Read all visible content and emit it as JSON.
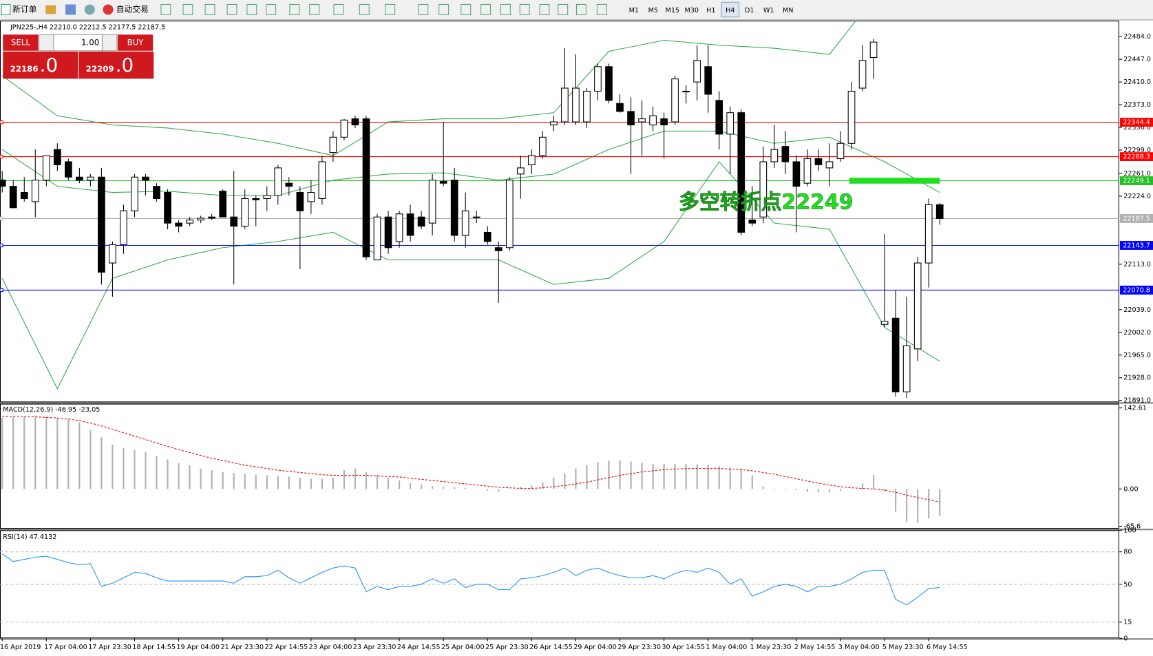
{
  "toolbar": {
    "new_order": "新订单",
    "auto_trading": "自动交易",
    "timeframes": [
      "M1",
      "M5",
      "M15",
      "M30",
      "H1",
      "H4",
      "D1",
      "W1",
      "MN"
    ]
  },
  "trade_panel": {
    "sell": "SELL",
    "volume": "1.00",
    "buy": "BUY",
    "bid": "22186",
    "bid_frac": ".0",
    "ask": "22209",
    "ask_frac": ".0"
  },
  "chart_data": [
    {
      "type": "candlestick",
      "title": "JPN225-,H4 22210.0 22212.5 22177.5 22187.5",
      "open": [
        22250,
        22240,
        22230,
        22215,
        22250,
        22300,
        22280,
        22255,
        22250,
        22255,
        22115,
        22145,
        22200,
        22255,
        22240,
        22230,
        22180,
        22180,
        22185,
        22190,
        22232,
        22190,
        22175,
        22220,
        22220,
        22225,
        22245,
        22230,
        22215,
        22220,
        22295,
        22320,
        22350,
        22350,
        22120,
        22190,
        22150,
        22195,
        22190,
        22180,
        22248,
        22250,
        22160,
        22190,
        22165,
        22140,
        22140,
        22260,
        22275,
        22290,
        22340,
        22345,
        22345,
        22345,
        22395,
        22435,
        22375,
        22362,
        22345,
        22340,
        22350,
        22345,
        22395,
        22410,
        22435,
        22380,
        22325,
        22360,
        22185,
        22190,
        22280,
        22305,
        22280,
        22245,
        22285,
        22270,
        22285,
        22310,
        22400,
        22450,
        22015,
        22025,
        21905,
        21975,
        22115,
        22210
      ],
      "high": [
        22265,
        22250,
        22255,
        22300,
        22290,
        22310,
        22285,
        22270,
        22260,
        22270,
        22150,
        22210,
        22260,
        22260,
        22245,
        22235,
        22185,
        22190,
        22192,
        22195,
        22235,
        22265,
        22235,
        22225,
        22240,
        22275,
        22255,
        22240,
        22250,
        22290,
        22330,
        22350,
        22355,
        22355,
        22195,
        22200,
        22200,
        22210,
        22200,
        22260,
        22345,
        22270,
        22230,
        22200,
        22175,
        22150,
        22255,
        22290,
        22300,
        22330,
        22355,
        22465,
        22455,
        22400,
        22440,
        22440,
        22390,
        22385,
        22380,
        22370,
        22360,
        22420,
        22405,
        22470,
        22470,
        22395,
        22370,
        22365,
        22240,
        22305,
        22340,
        22330,
        22290,
        22300,
        22300,
        22310,
        22330,
        22410,
        22470,
        22480,
        22162,
        22070,
        22060,
        22125,
        22220,
        22212.5
      ],
      "low": [
        22230,
        22210,
        22215,
        22190,
        22240,
        22265,
        22250,
        22245,
        22240,
        22080,
        22060,
        22130,
        22190,
        22225,
        22215,
        22170,
        22165,
        22175,
        22180,
        22185,
        22190,
        22080,
        22170,
        22175,
        22200,
        22210,
        22225,
        22105,
        22195,
        22210,
        22280,
        22315,
        22335,
        22120,
        22120,
        22130,
        22140,
        22150,
        22170,
        22160,
        22240,
        22150,
        22140,
        22180,
        22145,
        22050,
        22135,
        22220,
        22260,
        22285,
        22330,
        22340,
        22340,
        22335,
        22380,
        22375,
        22360,
        22260,
        22290,
        22330,
        22285,
        22340,
        22375,
        22380,
        22360,
        22300,
        22260,
        22160,
        22175,
        22180,
        22270,
        22260,
        22165,
        22240,
        22265,
        22240,
        22280,
        22300,
        22395,
        22415,
        22010,
        21897,
        21895,
        21955,
        22075,
        22177.5
      ],
      "close": [
        22240,
        22205,
        22220,
        22250,
        22290,
        22275,
        22255,
        22250,
        22255,
        22100,
        22145,
        22200,
        22255,
        22250,
        22220,
        22180,
        22175,
        22185,
        22188,
        22188,
        22190,
        22175,
        22220,
        22218,
        22225,
        22270,
        22240,
        22200,
        22230,
        22280,
        22320,
        22348,
        22340,
        22125,
        22190,
        22140,
        22195,
        22160,
        22175,
        22250,
        22245,
        22160,
        22200,
        22190,
        22150,
        22135,
        22250,
        22270,
        22290,
        22320,
        22345,
        22400,
        22400,
        22395,
        22435,
        22380,
        22362,
        22340,
        22350,
        22355,
        22340,
        22415,
        22395,
        22445,
        22390,
        22325,
        22360,
        22165,
        22180,
        22280,
        22300,
        22280,
        22240,
        22285,
        22275,
        22280,
        22310,
        22395,
        22445,
        22475,
        22020,
        21905,
        21980,
        22115,
        22210,
        22187.5
      ],
      "bands": {
        "x": [
          0,
          5,
          10,
          15,
          20,
          25,
          30,
          35,
          40,
          45,
          50,
          55,
          60,
          65,
          70,
          75,
          80,
          85
        ],
        "upper": [
          22420,
          22355,
          22340,
          22335,
          22325,
          22310,
          22290,
          22345,
          22350,
          22350,
          22360,
          22460,
          22478,
          22470,
          22465,
          22455,
          22570,
          22570
        ],
        "middle": [
          22300,
          22240,
          22230,
          22232,
          22225,
          22225,
          22250,
          22260,
          22262,
          22250,
          22260,
          22300,
          22330,
          22330,
          22310,
          22320,
          22280,
          22230
        ],
        "lower": [
          22090,
          21910,
          22090,
          22120,
          22140,
          22150,
          22165,
          22120,
          22120,
          22120,
          22080,
          22090,
          22150,
          22280,
          22180,
          22170,
          22010,
          21955
        ],
        "color": "#2fa84a"
      },
      "hlines": [
        {
          "value": 22344.4,
          "color": "#ff0000"
        },
        {
          "value": 22288.3,
          "color": "#ff0000"
        },
        {
          "value": 22249.1,
          "color": "#22c022"
        },
        {
          "value": 22187.5,
          "color": "#b0b0b0"
        },
        {
          "value": 22143.7,
          "color": "#0000ff"
        },
        {
          "value": 22070.8,
          "color": "#0000ff"
        }
      ],
      "annotation": {
        "text": "多空转折点22249",
        "color": "#22dd22"
      },
      "ylim": [
        21888,
        22510
      ],
      "yticks": [
        {
          "value": 22484,
          "label": "22484.0"
        },
        {
          "value": 22447,
          "label": "22447.0"
        },
        {
          "value": 22410,
          "label": "22410.0"
        },
        {
          "value": 22373,
          "label": "22373.0"
        },
        {
          "value": 22336,
          "label": "22336.0"
        },
        {
          "value": 22299,
          "label": "22299.0"
        },
        {
          "value": 22261,
          "label": "22261.0"
        },
        {
          "value": 22224,
          "label": "22224.0"
        },
        {
          "value": 22113,
          "label": "22113.0"
        },
        {
          "value": 22039,
          "label": "22039.0"
        },
        {
          "value": 22002,
          "label": "22002.0"
        },
        {
          "value": 21965,
          "label": "21965.0"
        },
        {
          "value": 21928,
          "label": "21928.0"
        },
        {
          "value": 21891,
          "label": "21891.0"
        }
      ]
    },
    {
      "type": "macd",
      "title": "MACD(12,26,9) -46.95 -23.05",
      "histogram": [
        125,
        127,
        127,
        127,
        127,
        125,
        122,
        117,
        104,
        91,
        78,
        72,
        69,
        65,
        58,
        52,
        45,
        42,
        36,
        33,
        30,
        28,
        27,
        25,
        24,
        23,
        22,
        20,
        18,
        18,
        20,
        33,
        36,
        30,
        25,
        20,
        15,
        10,
        8,
        5,
        4,
        3,
        2,
        0,
        -3,
        -5,
        0,
        4,
        6,
        12,
        20,
        27,
        36,
        42,
        47,
        50,
        50,
        48,
        46,
        44,
        44,
        44,
        44,
        43,
        42,
        40,
        38,
        35,
        24,
        4,
        -1,
        -1,
        -2,
        -5,
        -6,
        -6,
        -3,
        -1,
        10,
        25,
        -4,
        -40,
        -58,
        -60,
        -52,
        -47
      ],
      "signal": [
        128,
        128,
        128,
        127,
        126,
        125,
        123,
        120,
        116,
        111,
        105,
        99,
        93,
        87,
        81,
        75,
        69,
        64,
        59,
        54,
        50,
        46,
        42,
        39,
        36,
        33,
        31,
        29,
        27,
        25,
        24,
        24,
        24,
        24,
        23,
        22,
        21,
        19,
        17,
        15,
        13,
        11,
        9,
        7,
        5,
        3,
        2,
        1,
        1,
        2,
        4,
        6,
        9,
        12,
        16,
        20,
        24,
        27,
        30,
        32,
        34,
        35,
        36,
        36,
        36,
        36,
        35,
        34,
        32,
        29,
        26,
        22,
        18,
        14,
        10,
        7,
        4,
        2,
        1,
        0,
        -2,
        -6,
        -11,
        -15,
        -19,
        -23
      ],
      "ylim": [
        -70,
        150
      ],
      "yticks": [
        142.61,
        {
          "value": 0,
          "label": "0.00"
        },
        -65.6
      ]
    },
    {
      "type": "rsi",
      "title": "RSI(14) 47.4132",
      "values": [
        78,
        71,
        73,
        75,
        76,
        73,
        70,
        68,
        69,
        48,
        51,
        56,
        61,
        60,
        56,
        53,
        53,
        53,
        53,
        53,
        53,
        51,
        57,
        57,
        58,
        63,
        56,
        51,
        56,
        61,
        65,
        67,
        65,
        43,
        48,
        45,
        48,
        48,
        50,
        55,
        51,
        55,
        47,
        50,
        50,
        45,
        45,
        55,
        56,
        58,
        61,
        65,
        58,
        63,
        65,
        61,
        58,
        56,
        56,
        58,
        55,
        60,
        63,
        61,
        65,
        61,
        50,
        55,
        39,
        43,
        48,
        50,
        48,
        43,
        48,
        48,
        50,
        55,
        61,
        63,
        63,
        36,
        31,
        38,
        46,
        47
      ],
      "color": "#1e90ff",
      "ylim": [
        0,
        100
      ],
      "yticks": [
        100,
        80,
        50,
        15,
        0
      ]
    }
  ],
  "x_labels": [
    "16 Apr 2019",
    "17 Apr 04:00",
    "17 Apr 23:30",
    "18 Apr 14:55",
    "19 Apr 04:00",
    "21 Apr 23:30",
    "22 Apr 14:55",
    "23 Apr 04:00",
    "23 Apr 23:30",
    "24 Apr 14:55",
    "25 Apr 04:00",
    "25 Apr 23:30",
    "26 Apr 14:55",
    "29 Apr 04:00",
    "29 Apr 23:30",
    "30 Apr 14:55",
    "1 May 04:00",
    "1 May 23:30",
    "2 May 14:55",
    "3 May 04:00",
    "5 May 23:30",
    "6 May 14:55"
  ]
}
